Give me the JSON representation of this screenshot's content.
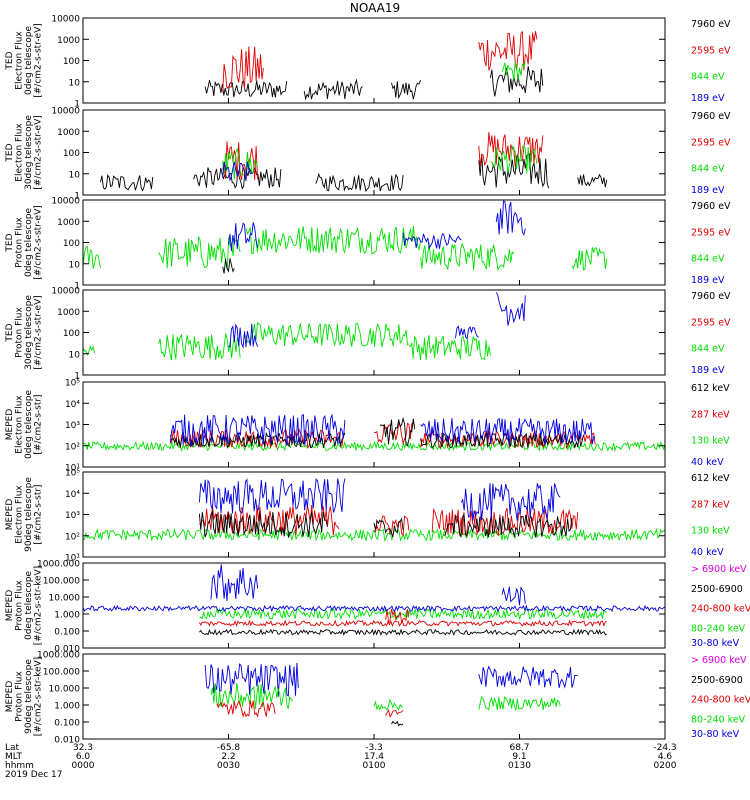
{
  "title": "NOAA19",
  "colors": {
    "black": "#000000",
    "red": "#e00000",
    "green": "#00e000",
    "blue": "#0000e0",
    "magenta": "#e000e0"
  },
  "chart_data": [
    {
      "type": "scatter",
      "ylabel": [
        "TED",
        "Electron Flux",
        "0deg telescope",
        "[#/cm2-s-str-eV]"
      ],
      "yscale": "log",
      "ylim": [
        1,
        10000
      ],
      "yticks": [
        "10000",
        "1000",
        "100",
        "10",
        "1"
      ],
      "legend": [
        {
          "label": "7960 eV",
          "color": "black"
        },
        {
          "label": "2595 eV",
          "color": "red"
        },
        {
          "label": "844 eV",
          "color": "green"
        },
        {
          "label": "189 eV",
          "color": "blue"
        }
      ],
      "series": [
        {
          "color": "black",
          "segments": [
            [
              0.21,
              0.35,
              1.5,
              12
            ],
            [
              0.38,
              0.48,
              1.5,
              12
            ],
            [
              0.53,
              0.58,
              1.5,
              12
            ],
            [
              0.7,
              0.79,
              2,
              60
            ]
          ]
        },
        {
          "color": "red",
          "segments": [
            [
              0.24,
              0.31,
              3,
              500
            ],
            [
              0.68,
              0.78,
              30,
              2500
            ]
          ]
        },
        {
          "color": "green",
          "segments": [
            [
              0.72,
              0.76,
              10,
              100
            ]
          ]
        }
      ]
    },
    {
      "type": "scatter",
      "ylabel": [
        "TED",
        "Electron Flux",
        "30deg telescope",
        "[#/cm2-s-str-eV]"
      ],
      "yscale": "log",
      "ylim": [
        1,
        10000
      ],
      "yticks": [
        "10000",
        "1000",
        "100",
        "10",
        "1"
      ],
      "legend": [
        {
          "label": "7960 eV",
          "color": "black"
        },
        {
          "label": "2595 eV",
          "color": "red"
        },
        {
          "label": "844 eV",
          "color": "green"
        },
        {
          "label": "189 eV",
          "color": "blue"
        }
      ],
      "series": [
        {
          "color": "black",
          "segments": [
            [
              0.03,
              0.12,
              1.5,
              10
            ],
            [
              0.19,
              0.34,
              2,
              20
            ],
            [
              0.4,
              0.55,
              1.5,
              10
            ],
            [
              0.68,
              0.8,
              2,
              100
            ],
            [
              0.85,
              0.9,
              2,
              10
            ]
          ]
        },
        {
          "color": "red",
          "segments": [
            [
              0.24,
              0.3,
              5,
              400
            ],
            [
              0.68,
              0.79,
              20,
              1000
            ]
          ]
        },
        {
          "color": "green",
          "segments": [
            [
              0.24,
              0.3,
              5,
              150
            ],
            [
              0.7,
              0.78,
              10,
              200
            ]
          ]
        },
        {
          "color": "blue",
          "segments": [
            [
              0.24,
              0.29,
              3,
              40
            ]
          ]
        }
      ]
    },
    {
      "type": "scatter",
      "ylabel": [
        "TED",
        "Proton Flux",
        "0deg telescope",
        "[#/cm2-s-str-eV]"
      ],
      "yscale": "log",
      "ylim": [
        1,
        10000
      ],
      "yticks": [
        "10000",
        "1000",
        "100",
        "10",
        "1"
      ],
      "legend": [
        {
          "label": "7960 eV",
          "color": "black"
        },
        {
          "label": "2595 eV",
          "color": "red"
        },
        {
          "label": "844 eV",
          "color": "green"
        },
        {
          "label": "189 eV",
          "color": "blue"
        }
      ],
      "series": [
        {
          "color": "green",
          "segments": [
            [
              0.0,
              0.03,
              5,
              80
            ],
            [
              0.13,
              0.27,
              5,
              200
            ],
            [
              0.28,
              0.58,
              30,
              700
            ],
            [
              0.58,
              0.74,
              5,
              100
            ],
            [
              0.84,
              0.9,
              5,
              60
            ]
          ]
        },
        {
          "color": "blue",
          "segments": [
            [
              0.25,
              0.3,
              30,
              1000
            ],
            [
              0.71,
              0.76,
              200,
              10000
            ],
            [
              0.55,
              0.65,
              50,
              300
            ]
          ]
        },
        {
          "color": "black",
          "segments": [
            [
              0.24,
              0.26,
              3,
              20
            ]
          ]
        }
      ]
    },
    {
      "type": "scatter",
      "ylabel": [
        "TED",
        "Proton Flux",
        "30deg telescope",
        "[#/cm2-s-str-eV]"
      ],
      "yscale": "log",
      "ylim": [
        1,
        10000
      ],
      "yticks": [
        "10000",
        "1000",
        "100",
        "10",
        "1"
      ],
      "legend": [
        {
          "label": "7960 eV",
          "color": "black"
        },
        {
          "label": "2595 eV",
          "color": "red"
        },
        {
          "label": "844 eV",
          "color": "green"
        },
        {
          "label": "189 eV",
          "color": "blue"
        }
      ],
      "series": [
        {
          "color": "green",
          "segments": [
            [
              0.0,
              0.02,
              5,
              30
            ],
            [
              0.13,
              0.27,
              5,
              100
            ],
            [
              0.28,
              0.56,
              20,
              300
            ],
            [
              0.56,
              0.7,
              5,
              80
            ]
          ]
        },
        {
          "color": "blue",
          "segments": [
            [
              0.25,
              0.3,
              20,
              300
            ],
            [
              0.71,
              0.76,
              200,
              10000
            ],
            [
              0.64,
              0.68,
              50,
              200
            ]
          ]
        }
      ]
    },
    {
      "type": "scatter",
      "ylabel": [
        "MEPED",
        "Electron Flux",
        "0deg telescope",
        "[#/cm2-s-str]"
      ],
      "yscale": "log",
      "ylim": [
        10,
        100000
      ],
      "yticks": [
        "10⁵",
        "10⁴",
        "10³",
        "10²",
        "10¹"
      ],
      "legend": [
        {
          "label": "612 keV",
          "color": "black"
        },
        {
          "label": "287 keV",
          "color": "red"
        },
        {
          "label": "130 keV",
          "color": "green"
        },
        {
          "label": "40 keV",
          "color": "blue"
        }
      ],
      "series": [
        {
          "color": "green",
          "segments": [
            [
              0.0,
              1.0,
              60,
              150
            ]
          ]
        },
        {
          "color": "red",
          "segments": [
            [
              0.15,
              0.45,
              80,
              600
            ],
            [
              0.5,
              0.57,
              100,
              1500
            ],
            [
              0.58,
              0.88,
              80,
              500
            ]
          ]
        },
        {
          "color": "black",
          "segments": [
            [
              0.15,
              0.45,
              80,
              400
            ],
            [
              0.51,
              0.57,
              100,
              2000
            ],
            [
              0.58,
              0.86,
              80,
              400
            ]
          ]
        },
        {
          "color": "blue",
          "segments": [
            [
              0.15,
              0.45,
              100,
              3000
            ],
            [
              0.58,
              0.88,
              100,
              2000
            ]
          ]
        }
      ]
    },
    {
      "type": "scatter",
      "ylabel": [
        "MEPED",
        "Electron Flux",
        "90deg telescope",
        "[#/cm2-s-str]"
      ],
      "yscale": "log",
      "ylim": [
        10,
        100000
      ],
      "yticks": [
        "10⁵",
        "10⁴",
        "10³",
        "10²",
        "10¹"
      ],
      "legend": [
        {
          "label": "612 keV",
          "color": "black"
        },
        {
          "label": "287 keV",
          "color": "red"
        },
        {
          "label": "130 keV",
          "color": "green"
        },
        {
          "label": "40 keV",
          "color": "blue"
        }
      ],
      "series": [
        {
          "color": "green",
          "segments": [
            [
              0.0,
              1.0,
              60,
              200
            ]
          ]
        },
        {
          "color": "red",
          "segments": [
            [
              0.2,
              0.44,
              100,
              3000
            ],
            [
              0.5,
              0.56,
              100,
              1000
            ],
            [
              0.6,
              0.85,
              100,
              2000
            ]
          ]
        },
        {
          "color": "black",
          "segments": [
            [
              0.2,
              0.42,
              80,
              1500
            ],
            [
              0.5,
              0.55,
              80,
              700
            ],
            [
              0.62,
              0.84,
              80,
              1000
            ]
          ]
        },
        {
          "color": "blue",
          "segments": [
            [
              0.2,
              0.45,
              1000,
              50000
            ],
            [
              0.65,
              0.82,
              500,
              30000
            ]
          ]
        }
      ]
    },
    {
      "type": "scatter",
      "ylabel": [
        "MEPED",
        "Proton Flux",
        "0deg telescope",
        "[#/cm2-s-str-keV]"
      ],
      "yscale": "log",
      "ylim": [
        0.01,
        1000
      ],
      "yticks": [
        "1000.000",
        "100.000",
        "10.000",
        "1.000",
        "0.100",
        "0.010"
      ],
      "legend": [
        {
          "label": "> 6900 keV",
          "color": "magenta"
        },
        {
          "label": "2500-6900",
          "color": "black"
        },
        {
          "label": "240-800 keV",
          "color": "red"
        },
        {
          "label": "80-240 keV",
          "color": "green"
        },
        {
          "label": "30-80 keV",
          "color": "blue"
        }
      ],
      "series": [
        {
          "color": "green",
          "segments": [
            [
              0.2,
              0.9,
              0.5,
              2
            ]
          ]
        },
        {
          "color": "red",
          "segments": [
            [
              0.2,
              0.9,
              0.2,
              0.4
            ],
            [
              0.52,
              0.56,
              0.3,
              2
            ]
          ]
        },
        {
          "color": "black",
          "segments": [
            [
              0.2,
              0.9,
              0.06,
              0.12
            ]
          ]
        },
        {
          "color": "blue",
          "segments": [
            [
              0.22,
              0.3,
              5,
              1000
            ],
            [
              0.72,
              0.76,
              3,
              50
            ],
            [
              0.0,
              1.0,
              1.5,
              3
            ]
          ]
        }
      ]
    },
    {
      "type": "scatter",
      "ylabel": [
        "MEPED",
        "Proton Flux",
        "90deg telescope",
        "[#/cm2-s-str-keV]"
      ],
      "yscale": "log",
      "ylim": [
        0.01,
        1000
      ],
      "yticks": [
        "1000.000",
        "100.000",
        "10.000",
        "1.000",
        "0.100",
        "0.010"
      ],
      "legend": [
        {
          "label": "> 6900 keV",
          "color": "magenta"
        },
        {
          "label": "2500-6900",
          "color": "black"
        },
        {
          "label": "240-800 keV",
          "color": "red"
        },
        {
          "label": "80-240 keV",
          "color": "green"
        },
        {
          "label": "30-80 keV",
          "color": "blue"
        }
      ],
      "series": [
        {
          "color": "blue",
          "segments": [
            [
              0.21,
              0.37,
              3,
              300
            ],
            [
              0.68,
              0.85,
              10,
              200
            ]
          ]
        },
        {
          "color": "green",
          "segments": [
            [
              0.22,
              0.36,
              0.5,
              20
            ],
            [
              0.68,
              0.82,
              0.5,
              3
            ],
            [
              0.5,
              0.55,
              0.5,
              2
            ]
          ]
        },
        {
          "color": "red",
          "segments": [
            [
              0.23,
              0.33,
              0.2,
              2
            ],
            [
              0.52,
              0.55,
              0.2,
              0.5
            ]
          ]
        },
        {
          "color": "black",
          "segments": [
            [
              0.53,
              0.55,
              0.06,
              0.12
            ]
          ]
        }
      ]
    }
  ],
  "xaxis": {
    "row_labels": [
      "Lat",
      "MLT",
      "hhmm",
      "2019 Dec 17"
    ],
    "ticks": [
      {
        "lat": "32.3",
        "mlt": "6.0",
        "hhmm": "0000"
      },
      {
        "lat": "-65.8",
        "mlt": "2.2",
        "hhmm": "0030"
      },
      {
        "lat": "-3.3",
        "mlt": "17.4",
        "hhmm": "0100"
      },
      {
        "lat": "68.7",
        "mlt": "9.1",
        "hhmm": "0130"
      },
      {
        "lat": "-24.3",
        "mlt": "4.6",
        "hhmm": "0200"
      }
    ]
  }
}
